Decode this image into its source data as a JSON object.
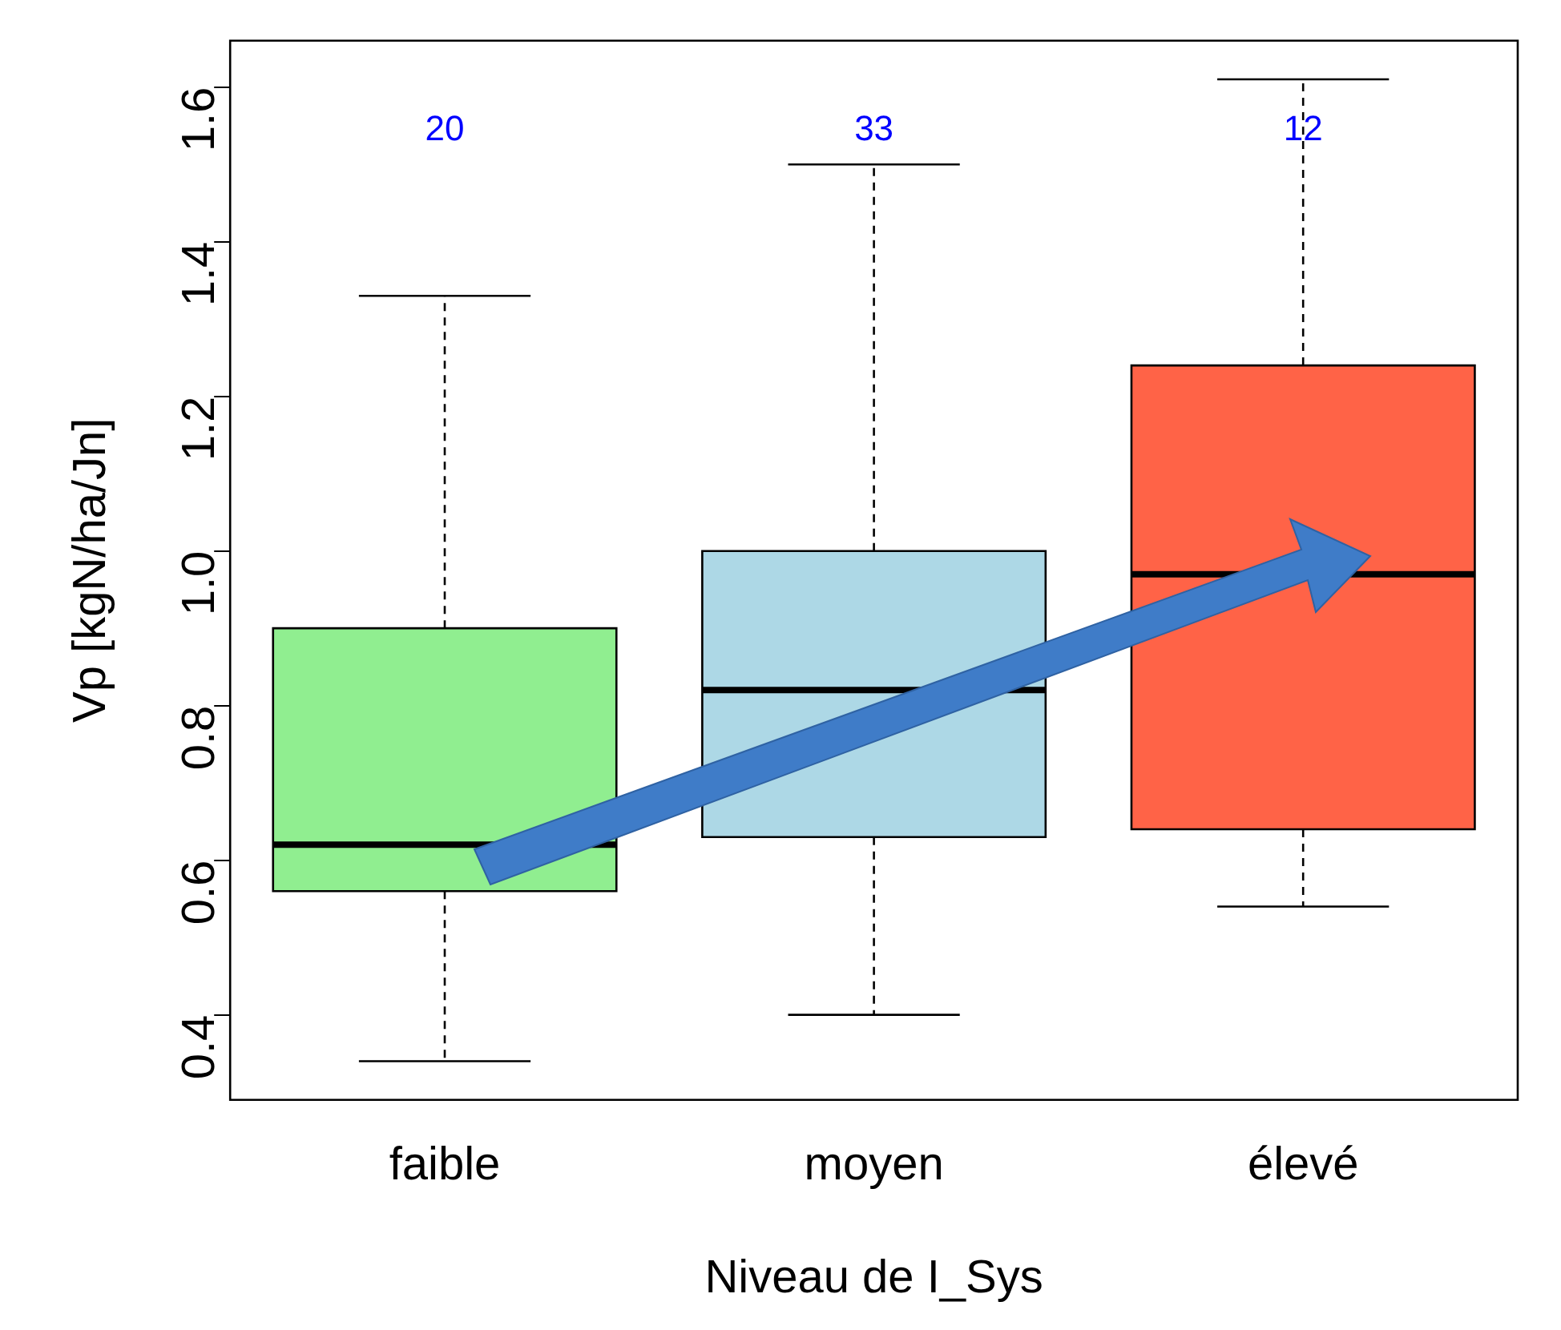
{
  "chart_data": {
    "type": "box",
    "xlabel": "Niveau de I_Sys",
    "ylabel": "Vp [kgN/ha/Jn]",
    "categories": [
      "faible",
      "moyen",
      "élevé"
    ],
    "colors": [
      "#90ee90",
      "#add8e6",
      "#ff6347"
    ],
    "boxes": [
      {
        "low": 0.34,
        "q1": 0.56,
        "median": 0.62,
        "q3": 0.9,
        "high": 1.33
      },
      {
        "low": 0.4,
        "q1": 0.63,
        "median": 0.82,
        "q3": 1.0,
        "high": 1.5
      },
      {
        "low": 0.54,
        "q1": 0.64,
        "median": 0.97,
        "q3": 1.24,
        "high": 1.61
      }
    ],
    "ylim": [
      0.29,
      1.66
    ],
    "yticks": [
      0.4,
      0.6,
      0.8,
      {
        "value": 1.0,
        "label": "1.0"
      },
      1.2,
      1.4,
      1.6
    ],
    "annotations": [
      "20",
      "33",
      "12"
    ],
    "grid": false,
    "legend": false
  }
}
